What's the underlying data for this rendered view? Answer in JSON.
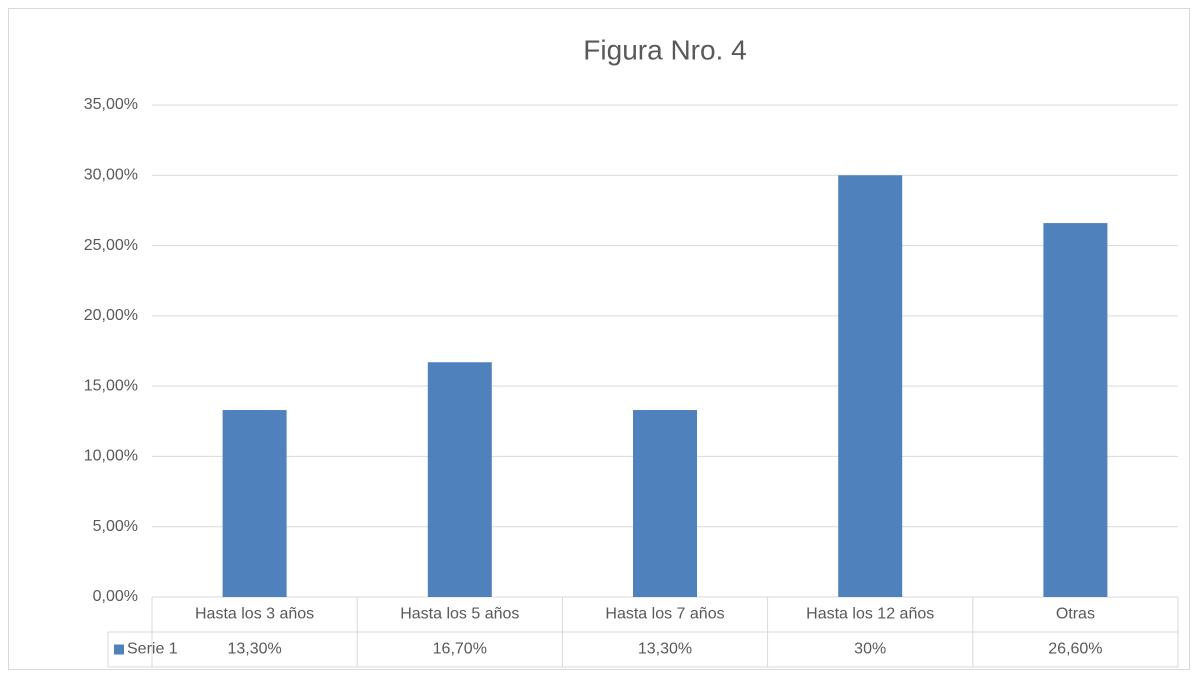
{
  "chart_data": {
    "type": "bar",
    "title": "Figura Nro. 4",
    "categories": [
      "Hasta los 3 años",
      "Hasta los 5 años",
      "Hasta los 7 años",
      "Hasta los 12 años",
      "Otras"
    ],
    "series": [
      {
        "name": "Serie 1",
        "color": "#4f81bd",
        "values": [
          13.3,
          16.7,
          13.3,
          30,
          26.6
        ],
        "value_labels": [
          "13,30%",
          "16,70%",
          "13,30%",
          "30%",
          "26,60%"
        ]
      }
    ],
    "ylim": [
      0,
      35
    ],
    "yticks": [
      {
        "value": 0,
        "label": "0,00%"
      },
      {
        "value": 5,
        "label": "5,00%"
      },
      {
        "value": 10,
        "label": "10,00%"
      },
      {
        "value": 15,
        "label": "15,00%"
      },
      {
        "value": 20,
        "label": "20,00%"
      },
      {
        "value": 25,
        "label": "25,00%"
      },
      {
        "value": 30,
        "label": "30,00%"
      },
      {
        "value": 35,
        "label": "35,00%"
      }
    ],
    "grid": true
  }
}
